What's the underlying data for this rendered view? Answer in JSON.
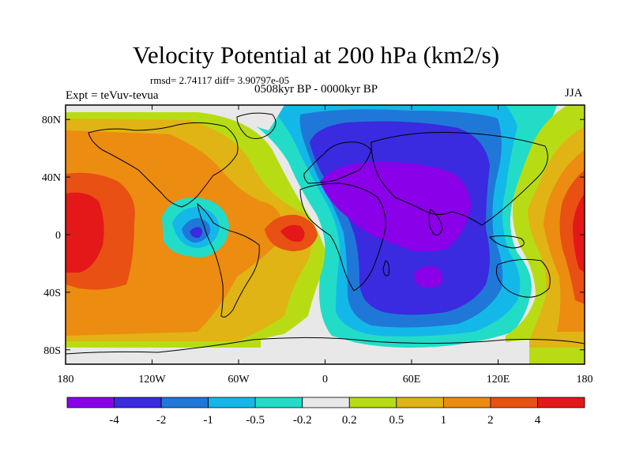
{
  "title": "Velocity Potential at 200 hPa (km2/s)",
  "stats": "rmsd= 2.74117 diff= 3.90797e-05",
  "experiment": "Expt = teVuv-tevua",
  "period": "0508kyr BP - 0000kyr BP",
  "season": "JJA",
  "map": {
    "projection": "cylindrical-equidistant",
    "lon_range": [
      -180,
      180
    ],
    "lat_range": [
      -90,
      90
    ],
    "lat_ticks": [
      {
        "label": "80N",
        "value": 80
      },
      {
        "label": "40N",
        "value": 40
      },
      {
        "label": "0",
        "value": 0
      },
      {
        "label": "40S",
        "value": -40
      },
      {
        "label": "80S",
        "value": -80
      }
    ],
    "lon_ticks": [
      {
        "label": "180",
        "value": -180
      },
      {
        "label": "120W",
        "value": -120
      },
      {
        "label": "60W",
        "value": -60
      },
      {
        "label": "0",
        "value": 0
      },
      {
        "label": "60E",
        "value": 60
      },
      {
        "label": "120E",
        "value": 120
      },
      {
        "label": "180",
        "value": 180
      }
    ]
  },
  "colorbar": {
    "colors": [
      "#8a00e8",
      "#3a2ae0",
      "#1f78d8",
      "#14b8e8",
      "#22dcc8",
      "#e8e8e8",
      "#b8dc14",
      "#e0b414",
      "#ec8c10",
      "#e85014",
      "#e41818"
    ],
    "labels": [
      "-4",
      "-2",
      "-1",
      "-0.5",
      "-0.2",
      "0.2",
      "0.5",
      "1",
      "2",
      "4"
    ]
  }
}
